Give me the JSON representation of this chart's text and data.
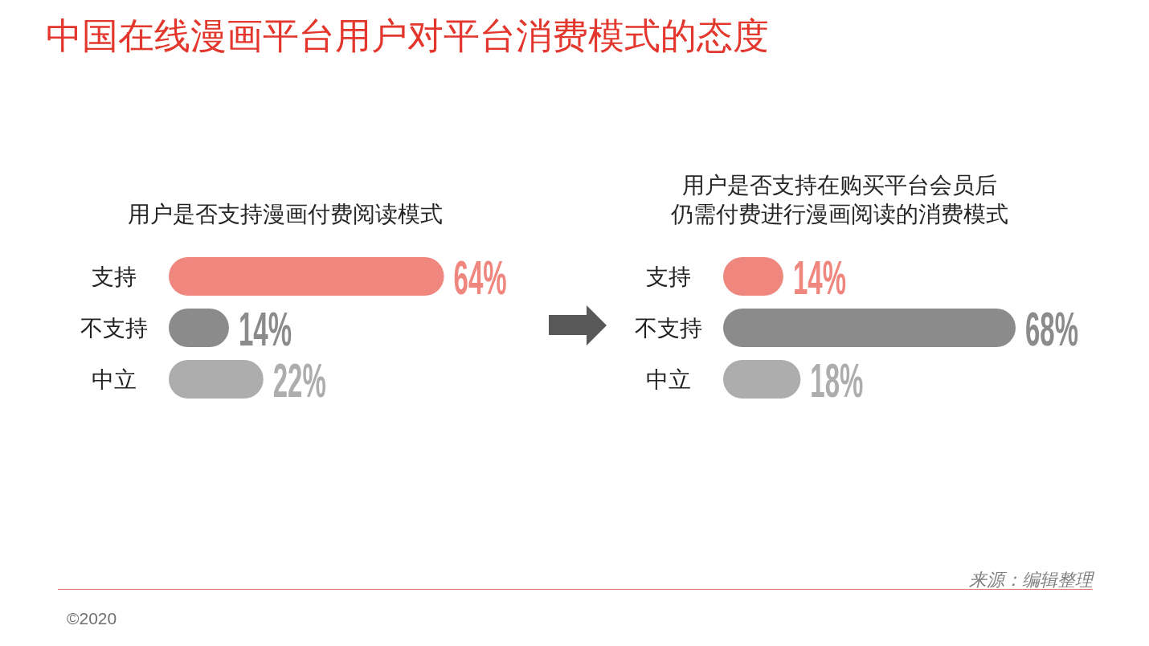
{
  "chart_data": [
    {
      "type": "other",
      "title": "中国在线漫画平台用户对平台消费模式的态度",
      "annotations": [
        "来源：编辑整理",
        "©2020"
      ]
    },
    {
      "type": "bar",
      "orientation": "horizontal",
      "title": "用户是否支持漫画付费阅读模式",
      "categories": [
        "支持",
        "不支持",
        "中立"
      ],
      "values": [
        64,
        14,
        22
      ],
      "colors": [
        "#f0877f",
        "#8b8b8b",
        "#adadad"
      ],
      "value_labels": [
        "64%",
        "14%",
        "22%"
      ],
      "tick_labels": "y"
    },
    {
      "type": "bar",
      "orientation": "horizontal",
      "title": "用户是否支持在购买平台会员后仍需付费进行漫画阅读的消费模式",
      "categories": [
        "支持",
        "不支持",
        "中立"
      ],
      "values": [
        14,
        68,
        18
      ],
      "colors": [
        "#f0877f",
        "#8b8b8b",
        "#adadad"
      ],
      "value_labels": [
        "14%",
        "68%",
        "18%"
      ],
      "tick_labels": "y"
    }
  ]
}
